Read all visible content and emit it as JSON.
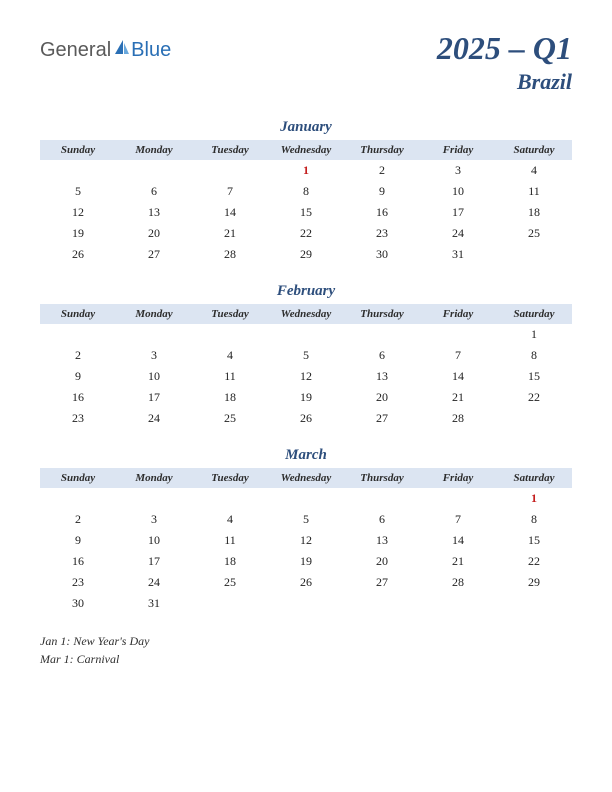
{
  "logo": {
    "part1": "General",
    "part2": "Blue"
  },
  "title": {
    "line1": "2025 – Q1",
    "line2": "Brazil"
  },
  "day_headers": [
    "Sunday",
    "Monday",
    "Tuesday",
    "Wednesday",
    "Thursday",
    "Friday",
    "Saturday"
  ],
  "months": [
    {
      "name": "January",
      "holidays": [
        1
      ],
      "weeks": [
        [
          "",
          "",
          "",
          "1",
          "2",
          "3",
          "4"
        ],
        [
          "5",
          "6",
          "7",
          "8",
          "9",
          "10",
          "11"
        ],
        [
          "12",
          "13",
          "14",
          "15",
          "16",
          "17",
          "18"
        ],
        [
          "19",
          "20",
          "21",
          "22",
          "23",
          "24",
          "25"
        ],
        [
          "26",
          "27",
          "28",
          "29",
          "30",
          "31",
          ""
        ]
      ]
    },
    {
      "name": "February",
      "holidays": [],
      "weeks": [
        [
          "",
          "",
          "",
          "",
          "",
          "",
          "1"
        ],
        [
          "2",
          "3",
          "4",
          "5",
          "6",
          "7",
          "8"
        ],
        [
          "9",
          "10",
          "11",
          "12",
          "13",
          "14",
          "15"
        ],
        [
          "16",
          "17",
          "18",
          "19",
          "20",
          "21",
          "22"
        ],
        [
          "23",
          "24",
          "25",
          "26",
          "27",
          "28",
          ""
        ]
      ]
    },
    {
      "name": "March",
      "holidays": [
        1
      ],
      "weeks": [
        [
          "",
          "",
          "",
          "",
          "",
          "",
          "1"
        ],
        [
          "2",
          "3",
          "4",
          "5",
          "6",
          "7",
          "8"
        ],
        [
          "9",
          "10",
          "11",
          "12",
          "13",
          "14",
          "15"
        ],
        [
          "16",
          "17",
          "18",
          "19",
          "20",
          "21",
          "22"
        ],
        [
          "23",
          "24",
          "25",
          "26",
          "27",
          "28",
          "29"
        ],
        [
          "30",
          "31",
          "",
          "",
          "",
          "",
          ""
        ]
      ]
    }
  ],
  "holiday_list": [
    "Jan 1: New Year's Day",
    "Mar 1: Carnival"
  ],
  "colors": {
    "header_bg": "#dce5f2",
    "title_color": "#2d4e7c",
    "holiday_color": "#c41e1e",
    "text_color": "#222222",
    "background": "#ffffff"
  }
}
